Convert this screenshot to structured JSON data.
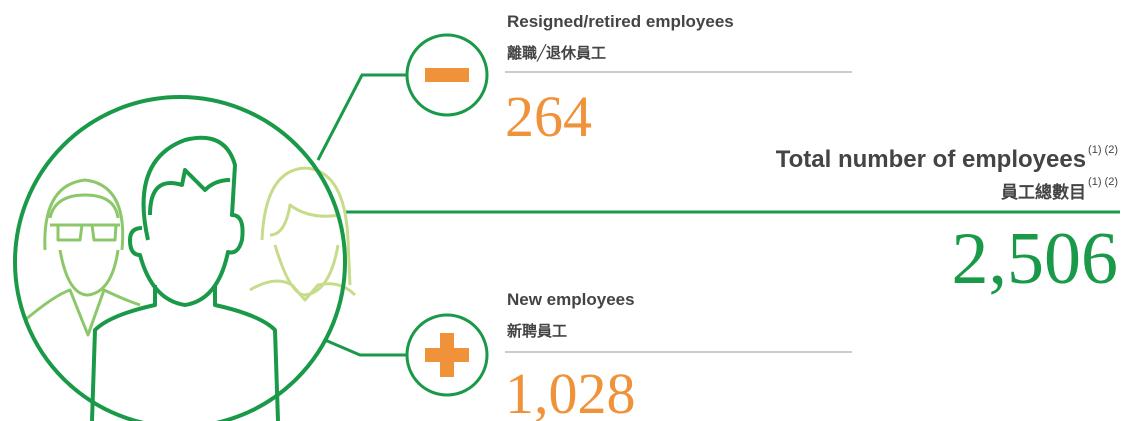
{
  "resigned": {
    "label": "Resigned/retired employees",
    "label_zh": "離職╱退休員工",
    "value": "264"
  },
  "total": {
    "label": "Total number of employees",
    "note": "(1) (2)",
    "label_zh": "員工總數目",
    "note_zh": "(1) (2)",
    "value": "2,506"
  },
  "new": {
    "label": "New employees",
    "label_zh": "新聘員工",
    "value": "1,028"
  }
}
